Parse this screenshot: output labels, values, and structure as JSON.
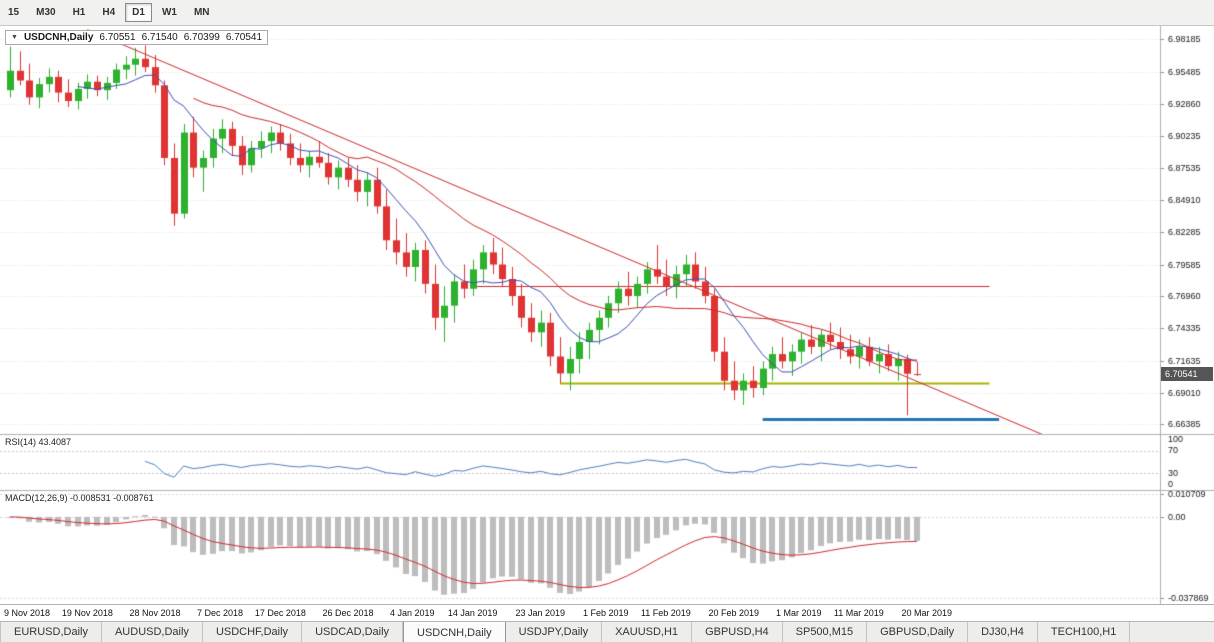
{
  "toolbar": {
    "timeframes": [
      {
        "label": "15",
        "active": false
      },
      {
        "label": "M30",
        "active": false
      },
      {
        "label": "H1",
        "active": false
      },
      {
        "label": "H4",
        "active": false
      },
      {
        "label": "D1",
        "active": true
      },
      {
        "label": "W1",
        "active": false
      },
      {
        "label": "MN",
        "active": false
      }
    ]
  },
  "chart": {
    "symbol_title": "USDCNH,Daily",
    "open": "6.70551",
    "high": "6.71540",
    "low": "6.70399",
    "close": "6.70541",
    "current_price": "6.70541",
    "rsi_label": "RSI(14)",
    "rsi_value": "43.4087",
    "macd_label": "MACD(12,26,9)",
    "macd_value": "-0.008531",
    "macd_signal_value": "-0.008761"
  },
  "chart_data": {
    "type": "candlestick",
    "symbol": "USDCNH",
    "timeframe": "Daily",
    "price_range": [
      6.656,
      6.993
    ],
    "price_axis_labels": [
      "6.98185",
      "6.95485",
      "6.92860",
      "6.90235",
      "6.87535",
      "6.84910",
      "6.82285",
      "6.79585",
      "6.76960",
      "6.74335",
      "6.71635",
      "6.69010",
      "6.66385"
    ],
    "date_labels": [
      {
        "index": 0,
        "label": "9 Nov 2018"
      },
      {
        "index": 6,
        "label": "19 Nov 2018"
      },
      {
        "index": 13,
        "label": "28 Nov 2018"
      },
      {
        "index": 20,
        "label": "7 Dec 2018"
      },
      {
        "index": 26,
        "label": "17 Dec 2018"
      },
      {
        "index": 33,
        "label": "26 Dec 2018"
      },
      {
        "index": 40,
        "label": "4 Jan 2019"
      },
      {
        "index": 46,
        "label": "14 Jan 2019"
      },
      {
        "index": 53,
        "label": "23 Jan 2019"
      },
      {
        "index": 60,
        "label": "1 Feb 2019"
      },
      {
        "index": 66,
        "label": "11 Feb 2019"
      },
      {
        "index": 73,
        "label": "20 Feb 2019"
      },
      {
        "index": 80,
        "label": "1 Mar 2019"
      },
      {
        "index": 86,
        "label": "11 Mar 2019"
      },
      {
        "index": 93,
        "label": "20 Mar 2019"
      }
    ],
    "candles": [
      [
        6.94,
        6.976,
        6.934,
        6.956
      ],
      [
        6.956,
        6.972,
        6.944,
        6.948
      ],
      [
        6.948,
        6.962,
        6.928,
        6.934
      ],
      [
        6.934,
        6.95,
        6.925,
        6.945
      ],
      [
        6.945,
        6.958,
        6.938,
        6.951
      ],
      [
        6.951,
        6.956,
        6.93,
        6.938
      ],
      [
        6.938,
        6.949,
        6.926,
        6.931
      ],
      [
        6.931,
        6.946,
        6.924,
        6.941
      ],
      [
        6.941,
        6.953,
        6.933,
        6.947
      ],
      [
        6.947,
        6.952,
        6.935,
        6.94
      ],
      [
        6.94,
        6.951,
        6.932,
        6.946
      ],
      [
        6.946,
        6.962,
        6.941,
        6.957
      ],
      [
        6.957,
        6.968,
        6.949,
        6.961
      ],
      [
        6.961,
        6.975,
        6.952,
        6.966
      ],
      [
        6.966,
        6.977,
        6.955,
        6.959
      ],
      [
        6.959,
        6.969,
        6.938,
        6.944
      ],
      [
        6.944,
        6.948,
        6.878,
        6.884
      ],
      [
        6.884,
        6.896,
        6.828,
        6.838
      ],
      [
        6.838,
        6.912,
        6.834,
        6.905
      ],
      [
        6.905,
        6.918,
        6.868,
        6.876
      ],
      [
        6.876,
        6.89,
        6.856,
        6.884
      ],
      [
        6.884,
        6.908,
        6.876,
        6.9
      ],
      [
        6.9,
        6.916,
        6.888,
        6.908
      ],
      [
        6.908,
        6.914,
        6.886,
        6.894
      ],
      [
        6.894,
        6.902,
        6.87,
        6.878
      ],
      [
        6.878,
        6.898,
        6.872,
        6.892
      ],
      [
        6.892,
        6.906,
        6.884,
        6.898
      ],
      [
        6.898,
        6.91,
        6.888,
        6.905
      ],
      [
        6.905,
        6.912,
        6.89,
        6.896
      ],
      [
        6.896,
        6.904,
        6.878,
        6.884
      ],
      [
        6.884,
        6.896,
        6.872,
        6.878
      ],
      [
        6.878,
        6.89,
        6.868,
        6.885
      ],
      [
        6.885,
        6.898,
        6.876,
        6.88
      ],
      [
        6.88,
        6.888,
        6.862,
        6.868
      ],
      [
        6.868,
        6.882,
        6.858,
        6.876
      ],
      [
        6.876,
        6.884,
        6.86,
        6.866
      ],
      [
        6.866,
        6.878,
        6.848,
        6.856
      ],
      [
        6.856,
        6.872,
        6.844,
        6.866
      ],
      [
        6.866,
        6.876,
        6.838,
        6.844
      ],
      [
        6.844,
        6.858,
        6.808,
        6.816
      ],
      [
        6.816,
        6.834,
        6.796,
        6.806
      ],
      [
        6.806,
        6.822,
        6.786,
        6.794
      ],
      [
        6.794,
        6.814,
        6.782,
        6.808
      ],
      [
        6.808,
        6.816,
        6.772,
        6.78
      ],
      [
        6.78,
        6.796,
        6.742,
        6.752
      ],
      [
        6.752,
        6.778,
        6.732,
        6.762
      ],
      [
        6.762,
        6.788,
        6.748,
        6.782
      ],
      [
        6.782,
        6.796,
        6.768,
        6.776
      ],
      [
        6.776,
        6.8,
        6.77,
        6.792
      ],
      [
        6.792,
        6.812,
        6.78,
        6.806
      ],
      [
        6.806,
        6.818,
        6.788,
        6.796
      ],
      [
        6.796,
        6.81,
        6.778,
        6.784
      ],
      [
        6.784,
        6.794,
        6.762,
        6.77
      ],
      [
        6.77,
        6.78,
        6.744,
        6.752
      ],
      [
        6.752,
        6.764,
        6.732,
        6.74
      ],
      [
        6.74,
        6.758,
        6.728,
        6.748
      ],
      [
        6.748,
        6.756,
        6.712,
        6.72
      ],
      [
        6.72,
        6.736,
        6.698,
        6.706
      ],
      [
        6.706,
        6.728,
        6.692,
        6.718
      ],
      [
        6.718,
        6.74,
        6.706,
        6.732
      ],
      [
        6.732,
        6.748,
        6.718,
        6.742
      ],
      [
        6.742,
        6.758,
        6.73,
        6.752
      ],
      [
        6.752,
        6.77,
        6.744,
        6.764
      ],
      [
        6.764,
        6.782,
        6.756,
        6.776
      ],
      [
        6.776,
        6.79,
        6.762,
        6.77
      ],
      [
        6.77,
        6.786,
        6.76,
        6.78
      ],
      [
        6.78,
        6.798,
        6.772,
        6.792
      ],
      [
        6.792,
        6.812,
        6.78,
        6.786
      ],
      [
        6.786,
        6.8,
        6.77,
        6.778
      ],
      [
        6.778,
        6.795,
        6.768,
        6.788
      ],
      [
        6.788,
        6.804,
        6.778,
        6.796
      ],
      [
        6.796,
        6.806,
        6.776,
        6.782
      ],
      [
        6.782,
        6.794,
        6.764,
        6.77
      ],
      [
        6.77,
        6.776,
        6.716,
        6.724
      ],
      [
        6.724,
        6.736,
        6.692,
        6.7
      ],
      [
        6.7,
        6.716,
        6.684,
        6.692
      ],
      [
        6.692,
        6.706,
        6.68,
        6.7
      ],
      [
        6.7,
        6.712,
        6.686,
        6.694
      ],
      [
        6.694,
        6.716,
        6.688,
        6.71
      ],
      [
        6.71,
        6.728,
        6.7,
        6.722
      ],
      [
        6.722,
        6.736,
        6.71,
        6.716
      ],
      [
        6.716,
        6.73,
        6.704,
        6.724
      ],
      [
        6.724,
        6.74,
        6.714,
        6.734
      ],
      [
        6.734,
        6.746,
        6.722,
        6.728
      ],
      [
        6.728,
        6.742,
        6.716,
        6.738
      ],
      [
        6.738,
        6.748,
        6.726,
        6.732
      ],
      [
        6.732,
        6.744,
        6.718,
        6.726
      ],
      [
        6.726,
        6.738,
        6.714,
        6.72
      ],
      [
        6.72,
        6.734,
        6.71,
        6.728
      ],
      [
        6.728,
        6.736,
        6.712,
        6.716
      ],
      [
        6.716,
        6.728,
        6.706,
        6.722
      ],
      [
        6.722,
        6.73,
        6.708,
        6.712
      ],
      [
        6.712,
        6.724,
        6.7,
        6.718
      ],
      [
        6.718,
        6.7215,
        6.6715,
        6.7058
      ],
      [
        6.70551,
        6.7154,
        6.70399,
        6.70541
      ]
    ],
    "colors": {
      "up": "#2eb12e",
      "down": "#e03434",
      "grid": "#e3e3e3",
      "axis_text": "#1a1a1a",
      "badge_bg": "#555555"
    },
    "overlays": {
      "trendline": {
        "from": [
          8,
          6.99
        ],
        "to": [
          107,
          6.6555
        ],
        "color": "#cc2b2b",
        "width": 1
      },
      "hlines": [
        {
          "name": "resistance-red",
          "price": 6.778,
          "from": 48,
          "to": 101.5,
          "color": "#cc2b2b",
          "width": 1
        },
        {
          "name": "support-olive",
          "price": 6.6985,
          "from": 57,
          "to": 101.5,
          "color": "#aab400",
          "width": 2
        },
        {
          "name": "support-blue",
          "price": 6.668,
          "from": 78,
          "to": 102.5,
          "color": "#2277bb",
          "width": 3
        }
      ],
      "ma_fast": {
        "period": 8,
        "color": "#3f51b5"
      },
      "ma_slow": {
        "period": 20,
        "color": "#cc2b2b"
      }
    },
    "rsi": {
      "period": 14,
      "value": 43.4087,
      "levels": [
        100,
        70,
        30,
        0
      ],
      "color": "#4f81bd"
    },
    "macd": {
      "fast": 12,
      "slow": 26,
      "signal": 9,
      "range": [
        -0.0405,
        0.0125
      ],
      "axis_labels": [
        {
          "text": "0.010709",
          "value": 0.010709
        },
        {
          "text": "0.00",
          "value": 0
        },
        {
          "text": "-0.037869",
          "value": -0.037869
        }
      ],
      "histogram_color": "#bdbdbd",
      "signal_color": "#cc2b2b"
    }
  },
  "tabs": {
    "items": [
      {
        "label": "EURUSD,Daily",
        "active": false
      },
      {
        "label": "AUDUSD,Daily",
        "active": false
      },
      {
        "label": "USDCHF,Daily",
        "active": false
      },
      {
        "label": "USDCAD,Daily",
        "active": false
      },
      {
        "label": "USDCNH,Daily",
        "active": true
      },
      {
        "label": "USDJPY,Daily",
        "active": false
      },
      {
        "label": "XAUUSD,H1",
        "active": false
      },
      {
        "label": "GBPUSD,H4",
        "active": false
      },
      {
        "label": "SP500,M15",
        "active": false
      },
      {
        "label": "GBPUSD,Daily",
        "active": false
      },
      {
        "label": "DJ30,H4",
        "active": false
      },
      {
        "label": "TECH100,H1",
        "active": false
      }
    ]
  }
}
